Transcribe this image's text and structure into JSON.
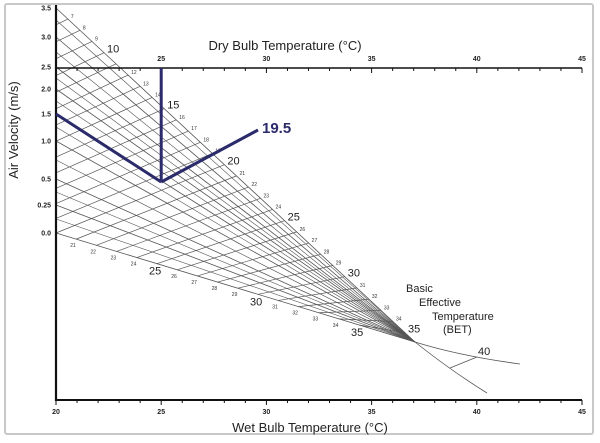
{
  "chart_data": {
    "type": "nomogram",
    "title": "",
    "top_axis": {
      "label": "Dry Bulb Temperature (°C)",
      "range": [
        20,
        45
      ],
      "ticks": [
        "25",
        "30",
        "35",
        "40",
        "45"
      ]
    },
    "bottom_axis": {
      "label": "Wet Bulb Temperature (°C)",
      "range": [
        20,
        45
      ],
      "ticks": [
        "20",
        "25",
        "30",
        "35",
        "40",
        "45"
      ]
    },
    "left_axis": {
      "label": "Air Velocity (m/s)",
      "ticks": [
        "3.5",
        "3.0",
        "2.5",
        "2.0",
        "1.5",
        "1.0",
        "0.5",
        "0.25",
        "0.0"
      ]
    },
    "bet_scale_label": [
      "Basic",
      "Effective",
      "Temperature",
      "(BET)"
    ],
    "bet_upper_labels": [
      7,
      8,
      9,
      10,
      12,
      13,
      14,
      15,
      16,
      17,
      18,
      19,
      20,
      21,
      22,
      23,
      24,
      25,
      26,
      27,
      28,
      29,
      30,
      31,
      32,
      33,
      34,
      35
    ],
    "bet_lower_labels": [
      21,
      22,
      23,
      24,
      25,
      26,
      27,
      28,
      29,
      30,
      31,
      32,
      33,
      34,
      35
    ],
    "extra_label": "40",
    "example": {
      "dry_bulb": 25,
      "air_velocity": 1.5,
      "result_bet": "19.5"
    },
    "colors": {
      "grid": "#555555",
      "axis": "#111111",
      "example_line": "#2b2a6b"
    }
  }
}
